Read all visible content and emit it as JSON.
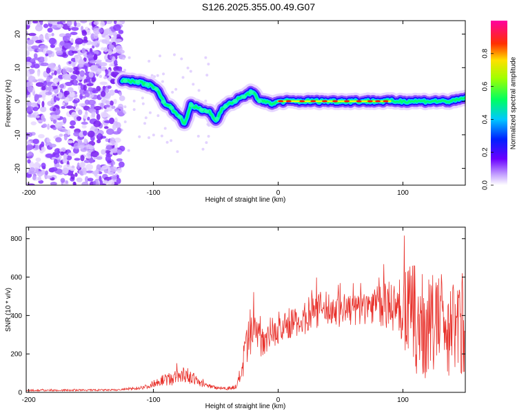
{
  "title": "S126.2025.355.00.49.G07",
  "chart_data": [
    {
      "type": "heatmap",
      "xlabel": "Height of straight line (km)",
      "ylabel": "Frequency (Hz)",
      "xlim": [
        -202,
        150
      ],
      "ylim": [
        -25,
        24
      ],
      "xticks": [
        -200,
        -100,
        0,
        100
      ],
      "yticks": [
        -20,
        -10,
        0,
        10,
        20
      ],
      "colorbar": {
        "label": "Normalized spectral amplitude",
        "range": [
          0,
          1
        ],
        "ticks": [
          0.0,
          0.2,
          0.4,
          0.6,
          0.8
        ],
        "colors": [
          "#ffffff",
          "#b080ff",
          "#2000ff",
          "#00e0ff",
          "#00ff40",
          "#f0ff00",
          "#ff0000",
          "#ff00a0"
        ]
      },
      "track": {
        "description": "signal ridge frequency vs height",
        "x": [
          -125,
          -115,
          -105,
          -98,
          -92,
          -86,
          -80,
          -75,
          -70,
          -65,
          -60,
          -55,
          -50,
          -45,
          -40,
          -35,
          -30,
          -25,
          -20,
          -16,
          -12,
          -8,
          -4,
          0,
          20,
          40,
          60,
          80,
          100,
          120,
          140,
          150
        ],
        "y": [
          6,
          6,
          5,
          4,
          0,
          -2,
          -4,
          -7,
          -1,
          -2,
          -3,
          -3,
          -6,
          -2,
          -1,
          0,
          1,
          2,
          3,
          0,
          0,
          0,
          -1,
          0,
          0,
          0,
          0,
          0,
          0,
          0,
          0,
          1
        ],
        "peak_x_range": [
          0,
          90
        ]
      },
      "noise_region": {
        "x_range": [
          -202,
          -125
        ],
        "y_range": [
          -25,
          24
        ]
      }
    },
    {
      "type": "line",
      "xlabel": "Height of straight line (km)",
      "ylabel": "SNR (10 * v/v)",
      "xlim": [
        -202,
        150
      ],
      "ylim": [
        0,
        860
      ],
      "xticks": [
        -200,
        -100,
        0,
        100
      ],
      "yticks": [
        0,
        200,
        400,
        600,
        800
      ],
      "color": "#e8302a",
      "series": [
        {
          "name": "SNR",
          "envelope_x": [
            -202,
            -130,
            -115,
            -105,
            -95,
            -85,
            -75,
            -65,
            -60,
            -50,
            -40,
            -33,
            -28,
            -22,
            -18,
            -12,
            -5,
            0,
            8,
            15,
            25,
            35,
            45,
            55,
            65,
            75,
            85,
            95,
            100,
            105,
            110,
            115,
            120,
            130,
            140,
            150
          ],
          "envelope_mean": [
            10,
            12,
            20,
            30,
            60,
            70,
            95,
            60,
            40,
            25,
            20,
            30,
            150,
            300,
            320,
            280,
            320,
            310,
            360,
            360,
            400,
            440,
            430,
            430,
            430,
            460,
            450,
            450,
            430,
            420,
            380,
            320,
            350,
            360,
            330,
            350
          ],
          "envelope_amp": [
            5,
            5,
            8,
            12,
            25,
            35,
            45,
            25,
            15,
            10,
            8,
            15,
            90,
            150,
            140,
            90,
            80,
            70,
            80,
            80,
            90,
            90,
            90,
            90,
            90,
            100,
            120,
            150,
            200,
            250,
            280,
            300,
            260,
            260,
            250,
            260
          ]
        }
      ]
    }
  ]
}
